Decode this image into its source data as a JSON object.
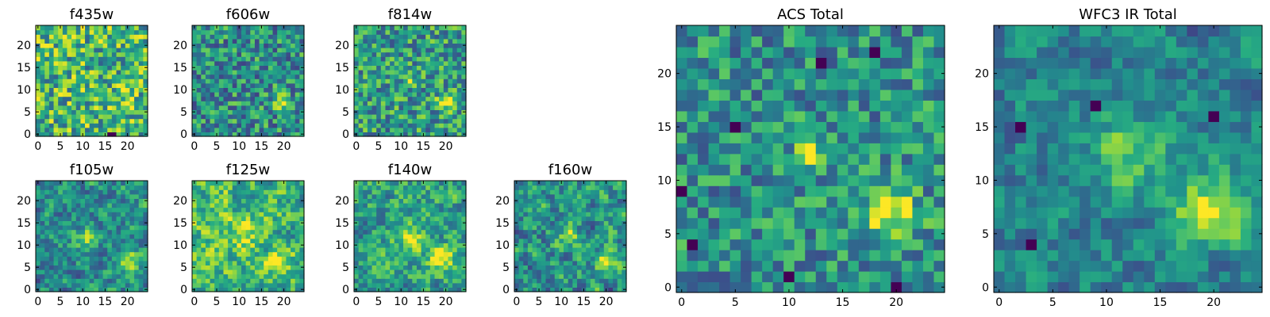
{
  "figure": {
    "colormap": "viridis",
    "colors": {
      "cmap_low": "#440154",
      "cmap_mid": "#21918c",
      "cmap_high": "#fde725",
      "frame": "#000000"
    }
  },
  "chart_data": [
    {
      "type": "heatmap",
      "title": "f435w",
      "grid": [
        25,
        25
      ],
      "xlim": [
        0,
        24
      ],
      "ylim": [
        0,
        24
      ],
      "xticks": [
        "0",
        "5",
        "10",
        "15",
        "20"
      ],
      "yticks": [
        "0",
        "5",
        "10",
        "15",
        "20"
      ],
      "field": {
        "seed": 11,
        "noise": 0.34,
        "base": 0.66,
        "blobs": [
          {
            "x": 20,
            "y": 6.5,
            "amp": 0.25,
            "sigma": 1.4
          }
        ]
      },
      "dead_pixels": [
        [
          16,
          0
        ],
        [
          17,
          0
        ]
      ]
    },
    {
      "type": "heatmap",
      "title": "f606w",
      "grid": [
        25,
        25
      ],
      "xlim": [
        0,
        24
      ],
      "ylim": [
        0,
        24
      ],
      "xticks": [
        "0",
        "5",
        "10",
        "15",
        "20"
      ],
      "yticks": [
        "0",
        "5",
        "10",
        "15",
        "20"
      ],
      "field": {
        "seed": 23,
        "noise": 0.3,
        "base": 0.5,
        "blobs": [
          {
            "x": 19.5,
            "y": 7,
            "amp": 0.45,
            "sigma": 1.3
          }
        ]
      },
      "dead_pixels": []
    },
    {
      "type": "heatmap",
      "title": "f814w",
      "grid": [
        25,
        25
      ],
      "xlim": [
        0,
        24
      ],
      "ylim": [
        0,
        24
      ],
      "xticks": [
        "0",
        "5",
        "10",
        "15",
        "20"
      ],
      "yticks": [
        "0",
        "5",
        "10",
        "15",
        "20"
      ],
      "field": {
        "seed": 37,
        "noise": 0.3,
        "base": 0.55,
        "blobs": [
          {
            "x": 20,
            "y": 7,
            "amp": 0.45,
            "sigma": 1.3
          },
          {
            "x": 12,
            "y": 12.5,
            "amp": 0.25,
            "sigma": 1.0
          }
        ]
      },
      "dead_pixels": []
    },
    {
      "type": "heatmap",
      "title": "f105w",
      "grid": [
        25,
        25
      ],
      "xlim": [
        0,
        24
      ],
      "ylim": [
        0,
        24
      ],
      "xticks": [
        "0",
        "5",
        "10",
        "15",
        "20"
      ],
      "yticks": [
        "0",
        "5",
        "10",
        "15",
        "20"
      ],
      "field": {
        "seed": 41,
        "noise": 0.22,
        "base": 0.48,
        "blobs": [
          {
            "x": 20,
            "y": 6.5,
            "amp": 0.5,
            "sigma": 1.6
          },
          {
            "x": 11,
            "y": 12,
            "amp": 0.3,
            "sigma": 2.0
          }
        ]
      },
      "dead_pixels": []
    },
    {
      "type": "heatmap",
      "title": "f125w",
      "grid": [
        25,
        25
      ],
      "xlim": [
        0,
        24
      ],
      "ylim": [
        0,
        24
      ],
      "xticks": [
        "0",
        "5",
        "10",
        "15",
        "20"
      ],
      "yticks": [
        "0",
        "5",
        "10",
        "15",
        "20"
      ],
      "field": {
        "seed": 53,
        "noise": 0.24,
        "base": 0.68,
        "blobs": [
          {
            "x": 19.5,
            "y": 6.5,
            "amp": 0.3,
            "sigma": 1.8
          },
          {
            "x": 11,
            "y": 12,
            "amp": 0.2,
            "sigma": 2.2
          }
        ]
      },
      "dead_pixels": []
    },
    {
      "type": "heatmap",
      "title": "f140w",
      "grid": [
        25,
        25
      ],
      "xlim": [
        0,
        24
      ],
      "ylim": [
        0,
        24
      ],
      "xticks": [
        "0",
        "5",
        "10",
        "15",
        "20"
      ],
      "yticks": [
        "0",
        "5",
        "10",
        "15",
        "20"
      ],
      "field": {
        "seed": 67,
        "noise": 0.22,
        "base": 0.58,
        "blobs": [
          {
            "x": 19.5,
            "y": 7,
            "amp": 0.45,
            "sigma": 1.9
          },
          {
            "x": 12,
            "y": 11.5,
            "amp": 0.3,
            "sigma": 2.3
          }
        ]
      },
      "dead_pixels": []
    },
    {
      "type": "heatmap",
      "title": "f160w",
      "grid": [
        25,
        25
      ],
      "xlim": [
        0,
        24
      ],
      "ylim": [
        0,
        24
      ],
      "xticks": [
        "0",
        "5",
        "10",
        "15",
        "20"
      ],
      "yticks": [
        "0",
        "5",
        "10",
        "15",
        "20"
      ],
      "field": {
        "seed": 79,
        "noise": 0.24,
        "base": 0.52,
        "blobs": [
          {
            "x": 19.5,
            "y": 6.5,
            "amp": 0.5,
            "sigma": 1.6
          },
          {
            "x": 11.5,
            "y": 12,
            "amp": 0.3,
            "sigma": 1.8
          }
        ]
      },
      "dead_pixels": []
    },
    {
      "type": "heatmap",
      "title": "ACS Total",
      "grid": [
        25,
        25
      ],
      "xlim": [
        0,
        24
      ],
      "ylim": [
        0,
        24
      ],
      "xticks": [
        "0",
        "5",
        "10",
        "15",
        "20"
      ],
      "yticks": [
        "0",
        "5",
        "10",
        "15",
        "20"
      ],
      "field": {
        "seed": 97,
        "noise": 0.26,
        "base": 0.5,
        "blobs": [
          {
            "x": 19.5,
            "y": 7,
            "amp": 0.55,
            "sigma": 1.6
          },
          {
            "x": 12,
            "y": 12.5,
            "amp": 0.38,
            "sigma": 1.1
          }
        ]
      },
      "dead_pixels": [
        [
          5,
          15
        ],
        [
          18,
          22
        ],
        [
          13,
          21
        ],
        [
          20,
          0
        ],
        [
          1,
          4
        ],
        [
          0,
          9
        ],
        [
          10,
          1
        ]
      ]
    },
    {
      "type": "heatmap",
      "title": "WFC3 IR Total",
      "grid": [
        25,
        25
      ],
      "xlim": [
        0,
        24
      ],
      "ylim": [
        0,
        24
      ],
      "xticks": [
        "0",
        "5",
        "10",
        "15",
        "20"
      ],
      "yticks": [
        "0",
        "5",
        "10",
        "15",
        "20"
      ],
      "field": {
        "seed": 113,
        "noise": 0.17,
        "base": 0.45,
        "blobs": [
          {
            "x": 19.5,
            "y": 7,
            "amp": 0.55,
            "sigma": 2.2
          },
          {
            "x": 12,
            "y": 12.5,
            "amp": 0.3,
            "sigma": 2.4
          }
        ]
      },
      "dead_pixels": [
        [
          20,
          16
        ],
        [
          9,
          17
        ],
        [
          2,
          15
        ],
        [
          3,
          4
        ]
      ]
    }
  ]
}
